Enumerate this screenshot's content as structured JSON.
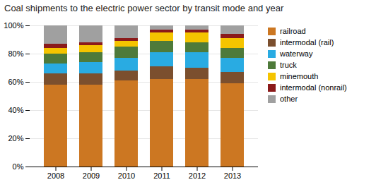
{
  "chart_data": {
    "type": "bar",
    "stacked": true,
    "title": "Coal shipments to the electric power sector  by transit  mode and year",
    "categories": [
      "2008",
      "2009",
      "2010",
      "2011",
      "2012",
      "2013"
    ],
    "series": [
      {
        "name": "railroad",
        "color": "#CC7722",
        "values": [
          58,
          58,
          61,
          62,
          62,
          59
        ]
      },
      {
        "name": "intermodal (rail)",
        "color": "#7B4F2E",
        "values": [
          8,
          8,
          7,
          9,
          8,
          8
        ]
      },
      {
        "name": "waterway",
        "color": "#29ABE2",
        "values": [
          7,
          8,
          9,
          10,
          11,
          10
        ]
      },
      {
        "name": "truck",
        "color": "#4E7A3A",
        "values": [
          7,
          7,
          8,
          8,
          7,
          7
        ]
      },
      {
        "name": "minemouth",
        "color": "#F5C400",
        "values": [
          4,
          5,
          4,
          6,
          7,
          7
        ]
      },
      {
        "name": "intermodal (nonrail)",
        "color": "#8B1A1A",
        "values": [
          3,
          2,
          2,
          2,
          2,
          3
        ]
      },
      {
        "name": "other",
        "color": "#A0A0A0",
        "values": [
          13,
          12,
          9,
          3,
          3,
          6
        ]
      }
    ],
    "ylim": [
      0,
      100
    ],
    "yticks": [
      {
        "value": 0,
        "label": "0%"
      },
      {
        "value": 20,
        "label": "20%"
      },
      {
        "value": 40,
        "label": "40%"
      },
      {
        "value": 60,
        "label": "60%"
      },
      {
        "value": 80,
        "label": "80%"
      },
      {
        "value": 100,
        "label": "100%"
      }
    ],
    "grid": true,
    "legend": "right"
  }
}
